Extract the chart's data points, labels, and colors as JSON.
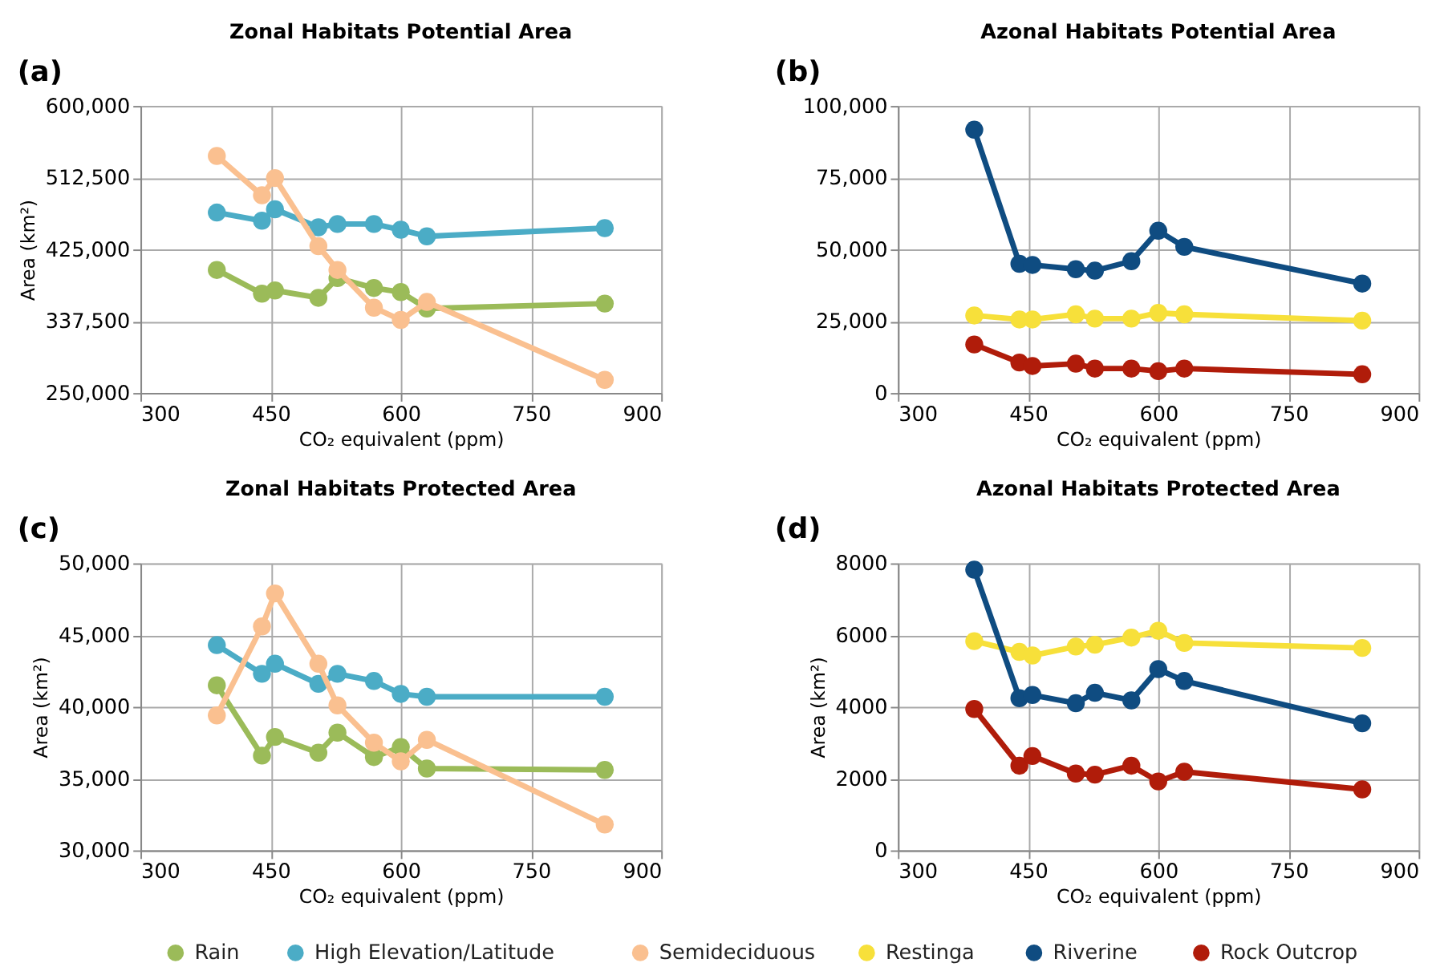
{
  "chart_data": [
    {
      "type": "line",
      "title": "Zonal Habitats Potential Area",
      "annotations": [
        "(a)"
      ],
      "xlabel": "CO₂ equivalent (ppm)",
      "ylabel": "Area (km²)",
      "x": [
        388,
        440,
        455,
        505,
        527,
        569,
        600,
        630,
        835
      ],
      "xlim": [
        300,
        900
      ],
      "xticks": [
        300,
        450,
        600,
        750,
        900
      ],
      "ylim": [
        250000,
        600000
      ],
      "yticks": [
        {
          "value": 250000,
          "label": "250,000"
        },
        {
          "value": 337500,
          "label": "337,500"
        },
        {
          "value": 425000,
          "label": "425,000"
        },
        {
          "value": 512500,
          "label": "512,500"
        },
        {
          "value": 600000,
          "label": "600,000"
        }
      ],
      "grid": true,
      "marker": "circle",
      "legend": "bottom",
      "series": [
        {
          "name": "Rain",
          "color": "#9bbb59",
          "values": [
            400000,
            371000,
            375000,
            366000,
            390000,
            378000,
            373000,
            353000,
            359000
          ]
        },
        {
          "name": "High Elevation/Latitude",
          "color": "#4bacc6",
          "values": [
            470000,
            460000,
            474000,
            452000,
            456000,
            456000,
            449000,
            441000,
            451000
          ]
        },
        {
          "name": "Semideciduous",
          "color": "#fac090",
          "values": [
            539000,
            491000,
            512000,
            429000,
            400000,
            354000,
            339000,
            361000,
            266000
          ]
        }
      ]
    },
    {
      "type": "line",
      "title": "Azonal Habitats Potential Area",
      "annotations": [
        "(b)"
      ],
      "xlabel": "CO₂ equivalent (ppm)",
      "x": [
        388,
        440,
        455,
        505,
        527,
        569,
        600,
        630,
        835
      ],
      "xlim": [
        300,
        900
      ],
      "xticks": [
        300,
        450,
        600,
        750,
        900
      ],
      "ylim": [
        0,
        100000
      ],
      "yticks": [
        0,
        {
          "value": 25000,
          "label": "25,000"
        },
        {
          "value": 50000,
          "label": "50,000"
        },
        {
          "value": 75000,
          "label": "75,000"
        },
        {
          "value": 100000,
          "label": "100,000"
        }
      ],
      "grid": true,
      "marker": "circle",
      "legend": "bottom",
      "series": [
        {
          "name": "Restinga",
          "color": "#f7e03a",
          "values": [
            27000,
            25600,
            25600,
            27400,
            25900,
            25900,
            27900,
            27400,
            25200
          ]
        },
        {
          "name": "Riverine",
          "color": "#0f4c81",
          "values": [
            91700,
            45000,
            44600,
            43100,
            42600,
            45900,
            56500,
            50900,
            38100
          ]
        },
        {
          "name": "Rock Outcrop",
          "color": "#b01c0a",
          "values": [
            16900,
            10600,
            9400,
            10200,
            8500,
            8500,
            7600,
            8500,
            6500
          ]
        }
      ]
    },
    {
      "type": "line",
      "title": "Zonal Habitats Protected Area",
      "annotations": [
        "(c)"
      ],
      "xlabel": "CO₂ equivalent (ppm)",
      "ylabel": "Area (km²)",
      "x": [
        388,
        440,
        455,
        505,
        527,
        569,
        600,
        630,
        835
      ],
      "xlim": [
        300,
        900
      ],
      "xticks": [
        300,
        450,
        600,
        750,
        900
      ],
      "ylim": [
        30000,
        50000
      ],
      "yticks": [
        {
          "value": 30000,
          "label": "30,000"
        },
        {
          "value": 35000,
          "label": "35,000"
        },
        {
          "value": 40000,
          "label": "40,000"
        },
        {
          "value": 45000,
          "label": "45,000"
        },
        {
          "value": 50000,
          "label": "50,000"
        }
      ],
      "grid": true,
      "marker": "circle",
      "legend": "bottom",
      "series": [
        {
          "name": "Rain",
          "color": "#9bbb59",
          "values": [
            41500,
            36600,
            37900,
            36800,
            38200,
            36500,
            37200,
            35700,
            35600
          ]
        },
        {
          "name": "High Elevation/Latitude",
          "color": "#4bacc6",
          "values": [
            44300,
            42300,
            43000,
            41600,
            42300,
            41800,
            40900,
            40700,
            40700
          ]
        },
        {
          "name": "Semideciduous",
          "color": "#fac090",
          "values": [
            39400,
            45600,
            47900,
            43000,
            40100,
            37500,
            36200,
            37700,
            31800
          ]
        }
      ]
    },
    {
      "type": "line",
      "title": "Azonal Habitats Protected Area",
      "annotations": [
        "(d)"
      ],
      "xlabel": "CO₂ equivalent (ppm)",
      "ylabel": "Area (km²)",
      "x": [
        388,
        440,
        455,
        505,
        527,
        569,
        600,
        630,
        835
      ],
      "xlim": [
        300,
        900
      ],
      "xticks": [
        300,
        450,
        600,
        750,
        900
      ],
      "ylim": [
        0,
        8000
      ],
      "yticks": [
        0,
        2000,
        4000,
        6000,
        8000
      ],
      "grid": true,
      "marker": "circle",
      "legend": "bottom",
      "series": [
        {
          "name": "Restinga",
          "color": "#f7e03a",
          "values": [
            5830,
            5530,
            5430,
            5680,
            5730,
            5930,
            6120,
            5780,
            5640
          ]
        },
        {
          "name": "Riverine",
          "color": "#0f4c81",
          "values": [
            7820,
            4240,
            4330,
            4100,
            4390,
            4180,
            5050,
            4720,
            3540
          ]
        },
        {
          "name": "Rock Outcrop",
          "color": "#b01c0a",
          "values": [
            3940,
            2360,
            2630,
            2140,
            2110,
            2360,
            1920,
            2190,
            1700
          ]
        }
      ]
    }
  ]
}
